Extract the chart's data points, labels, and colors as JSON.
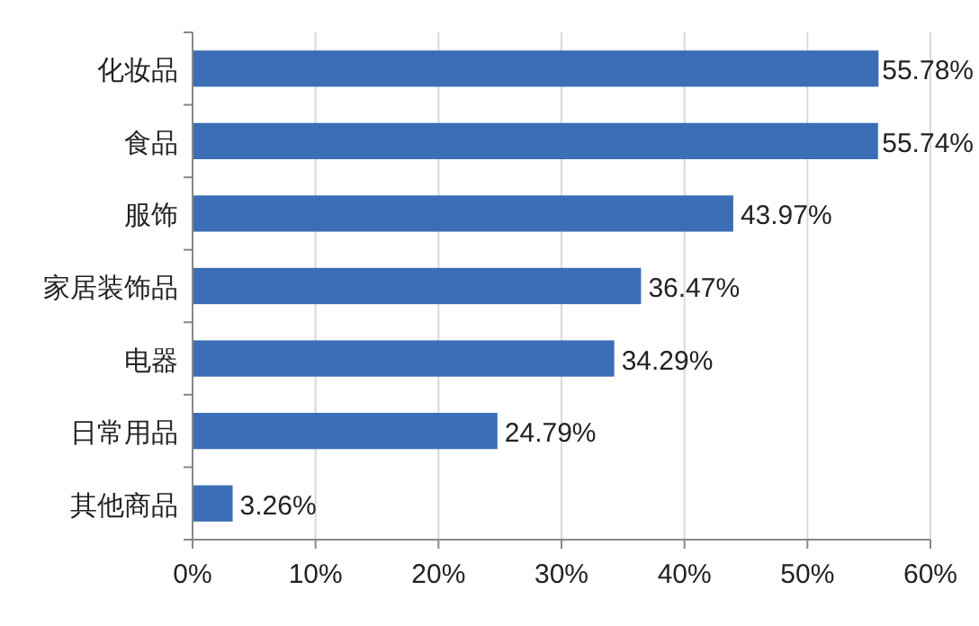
{
  "chart_data": {
    "type": "bar",
    "orientation": "horizontal",
    "categories": [
      "化妆品",
      "食品",
      "服饰",
      "家居装饰品",
      "电器",
      "日常用品",
      "其他商品"
    ],
    "values": [
      55.78,
      55.74,
      43.97,
      36.47,
      34.29,
      24.79,
      3.26
    ],
    "value_labels": [
      "55.78%",
      "55.74%",
      "43.97%",
      "36.47%",
      "34.29%",
      "24.79%",
      "3.26%"
    ],
    "color": "#3b6eb5",
    "xlim": [
      0,
      60
    ],
    "xticks": [
      {
        "value": 0,
        "label": "0%"
      },
      {
        "value": 10,
        "label": "10%"
      },
      {
        "value": 20,
        "label": "20%"
      },
      {
        "value": 30,
        "label": "30%"
      },
      {
        "value": 40,
        "label": "40%"
      },
      {
        "value": 50,
        "label": "50%"
      },
      {
        "value": 60,
        "label": "60%"
      }
    ],
    "grid": "x"
  }
}
